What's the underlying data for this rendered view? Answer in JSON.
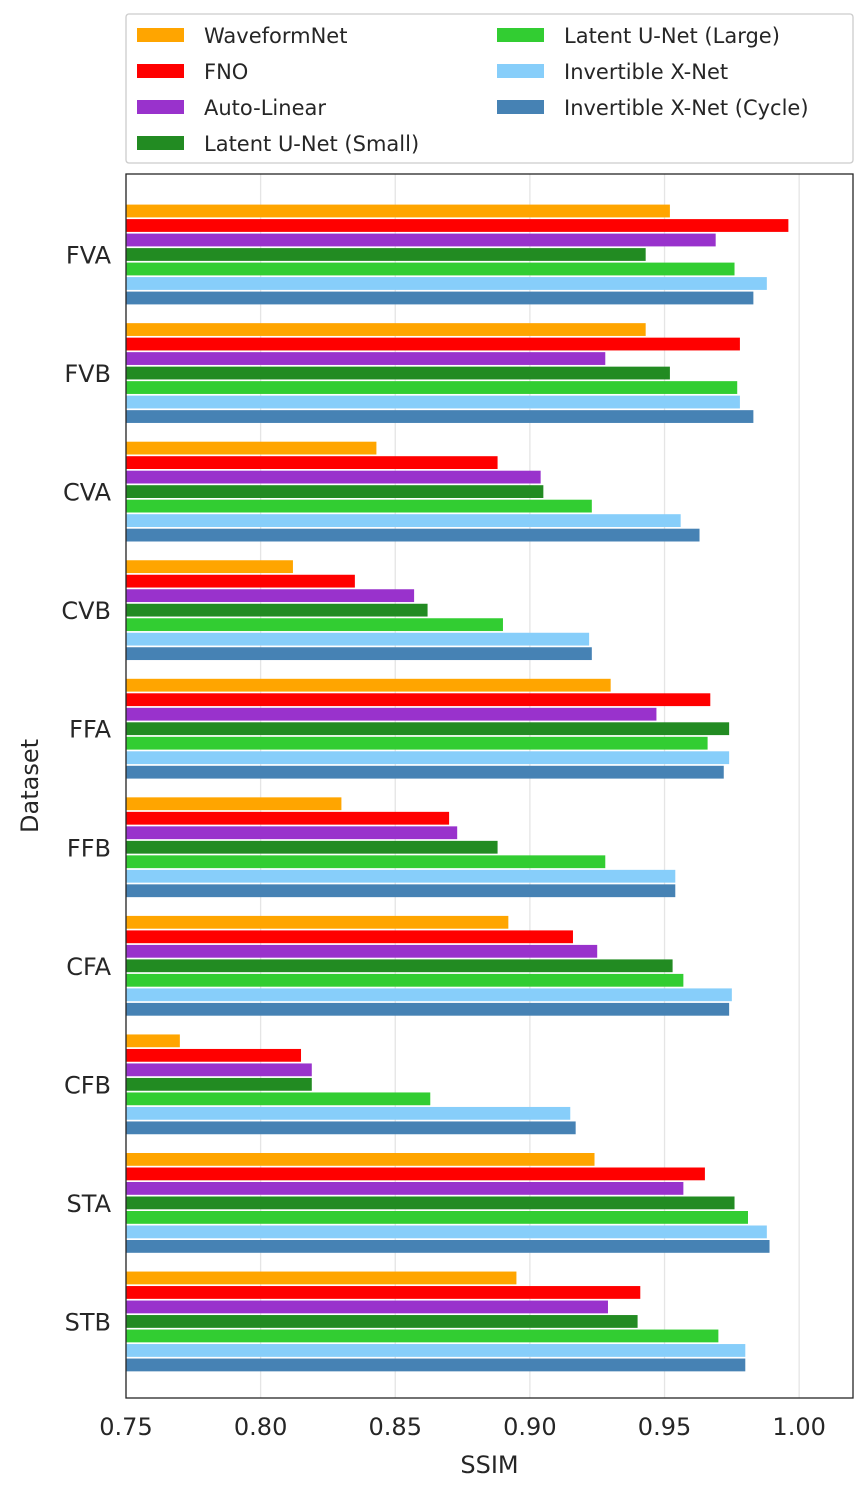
{
  "chart_data": {
    "type": "bar",
    "orientation": "horizontal",
    "title": "",
    "xlabel": "SSIM",
    "ylabel": "Dataset",
    "xlim": [
      0.75,
      1.02
    ],
    "xticks": [
      0.75,
      0.8,
      0.85,
      0.9,
      0.95,
      1.0
    ],
    "xtick_labels": [
      "0.75",
      "0.80",
      "0.85",
      "0.90",
      "0.95",
      "1.00"
    ],
    "grid": "vertical",
    "legend_position": "top",
    "categories": [
      "FVA",
      "FVB",
      "CVA",
      "CVB",
      "FFA",
      "FFB",
      "CFA",
      "CFB",
      "STA",
      "STB"
    ],
    "series": [
      {
        "name": "WaveformNet",
        "color": "#FFA500",
        "values": [
          0.952,
          0.943,
          0.843,
          0.812,
          0.93,
          0.83,
          0.892,
          0.77,
          0.924,
          0.895
        ]
      },
      {
        "name": "FNO",
        "color": "#FF0000",
        "values": [
          0.996,
          0.978,
          0.888,
          0.835,
          0.967,
          0.87,
          0.916,
          0.815,
          0.965,
          0.941
        ]
      },
      {
        "name": "Auto-Linear",
        "color": "#9932CC",
        "values": [
          0.969,
          0.928,
          0.904,
          0.857,
          0.947,
          0.873,
          0.925,
          0.819,
          0.957,
          0.929
        ]
      },
      {
        "name": "Latent U-Net (Small)",
        "color": "#228B22",
        "values": [
          0.943,
          0.952,
          0.905,
          0.862,
          0.974,
          0.888,
          0.953,
          0.819,
          0.976,
          0.94
        ]
      },
      {
        "name": "Latent U-Net (Large)",
        "color": "#32CD32",
        "values": [
          0.976,
          0.977,
          0.923,
          0.89,
          0.966,
          0.928,
          0.957,
          0.863,
          0.981,
          0.97
        ]
      },
      {
        "name": "Invertible X-Net",
        "color": "#87CEFA",
        "values": [
          0.988,
          0.978,
          0.956,
          0.922,
          0.974,
          0.954,
          0.975,
          0.915,
          0.988,
          0.98
        ]
      },
      {
        "name": "Invertible X-Net (Cycle)",
        "color": "#4682B4",
        "values": [
          0.983,
          0.983,
          0.963,
          0.923,
          0.972,
          0.954,
          0.974,
          0.917,
          0.989,
          0.98
        ]
      }
    ]
  }
}
